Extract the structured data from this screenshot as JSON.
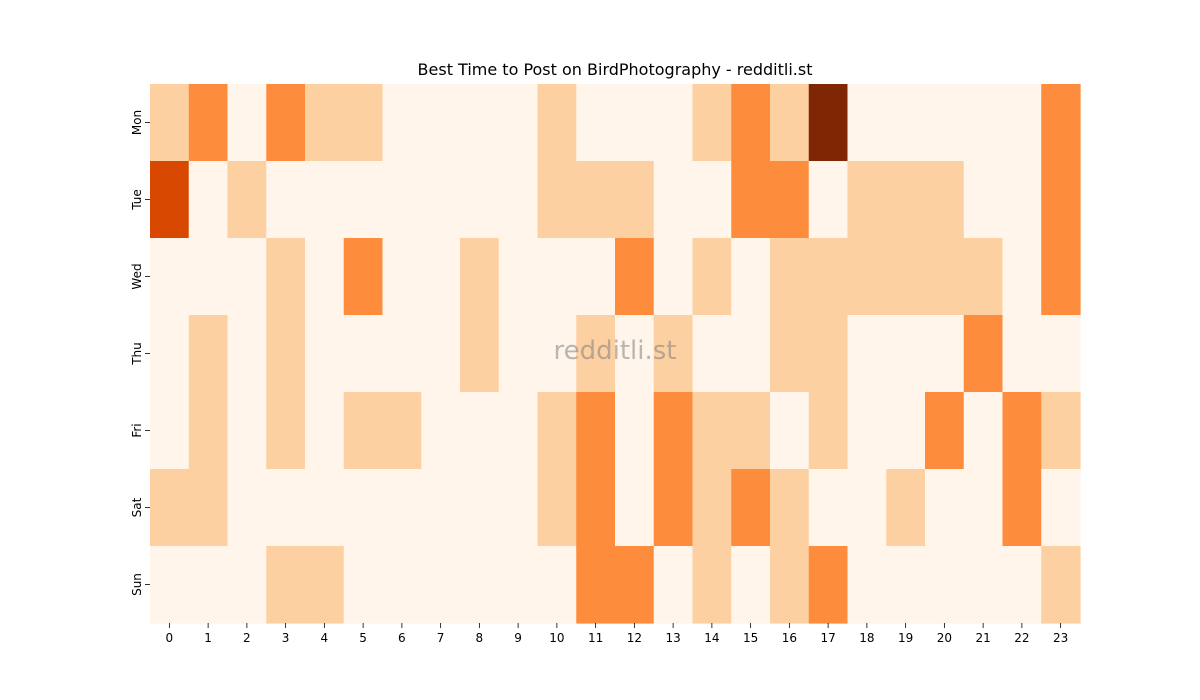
{
  "chart_data": {
    "type": "heatmap",
    "title": "Best Time to Post on BirdPhotography - redditli.st",
    "watermark": "redditli.st",
    "xlabel": "",
    "ylabel": "",
    "x": [
      0,
      1,
      2,
      3,
      4,
      5,
      6,
      7,
      8,
      9,
      10,
      11,
      12,
      13,
      14,
      15,
      16,
      17,
      18,
      19,
      20,
      21,
      22,
      23
    ],
    "y": [
      "Mon",
      "Tue",
      "Wed",
      "Thu",
      "Fri",
      "Sat",
      "Sun"
    ],
    "values": [
      [
        1,
        2,
        0,
        2,
        1,
        1,
        0,
        0,
        0,
        0,
        1,
        0,
        0,
        0,
        1,
        2,
        1,
        4,
        0,
        0,
        0,
        0,
        0,
        2
      ],
      [
        3,
        0,
        1,
        0,
        0,
        0,
        0,
        0,
        0,
        0,
        1,
        1,
        1,
        0,
        0,
        2,
        2,
        0,
        1,
        1,
        1,
        0,
        0,
        2
      ],
      [
        0,
        0,
        0,
        1,
        0,
        2,
        0,
        0,
        1,
        0,
        0,
        0,
        2,
        0,
        1,
        0,
        1,
        1,
        1,
        1,
        1,
        1,
        0,
        2
      ],
      [
        0,
        1,
        0,
        1,
        0,
        0,
        0,
        0,
        1,
        0,
        0,
        1,
        0,
        1,
        0,
        0,
        1,
        1,
        0,
        0,
        0,
        2,
        0,
        0
      ],
      [
        0,
        1,
        0,
        1,
        0,
        1,
        1,
        0,
        0,
        0,
        1,
        2,
        0,
        2,
        1,
        1,
        0,
        1,
        0,
        0,
        2,
        0,
        2,
        1
      ],
      [
        1,
        1,
        0,
        0,
        0,
        0,
        0,
        0,
        0,
        0,
        1,
        2,
        0,
        2,
        1,
        2,
        1,
        0,
        0,
        1,
        0,
        0,
        2,
        0
      ],
      [
        0,
        0,
        0,
        1,
        1,
        0,
        0,
        0,
        0,
        0,
        0,
        2,
        2,
        0,
        1,
        0,
        1,
        2,
        0,
        0,
        0,
        0,
        0,
        1
      ]
    ],
    "color_scale": [
      "#fff5eb",
      "#fdd0a2",
      "#fd8d3c",
      "#d94801",
      "#7f2704"
    ],
    "colorbar": false,
    "grid": false
  }
}
